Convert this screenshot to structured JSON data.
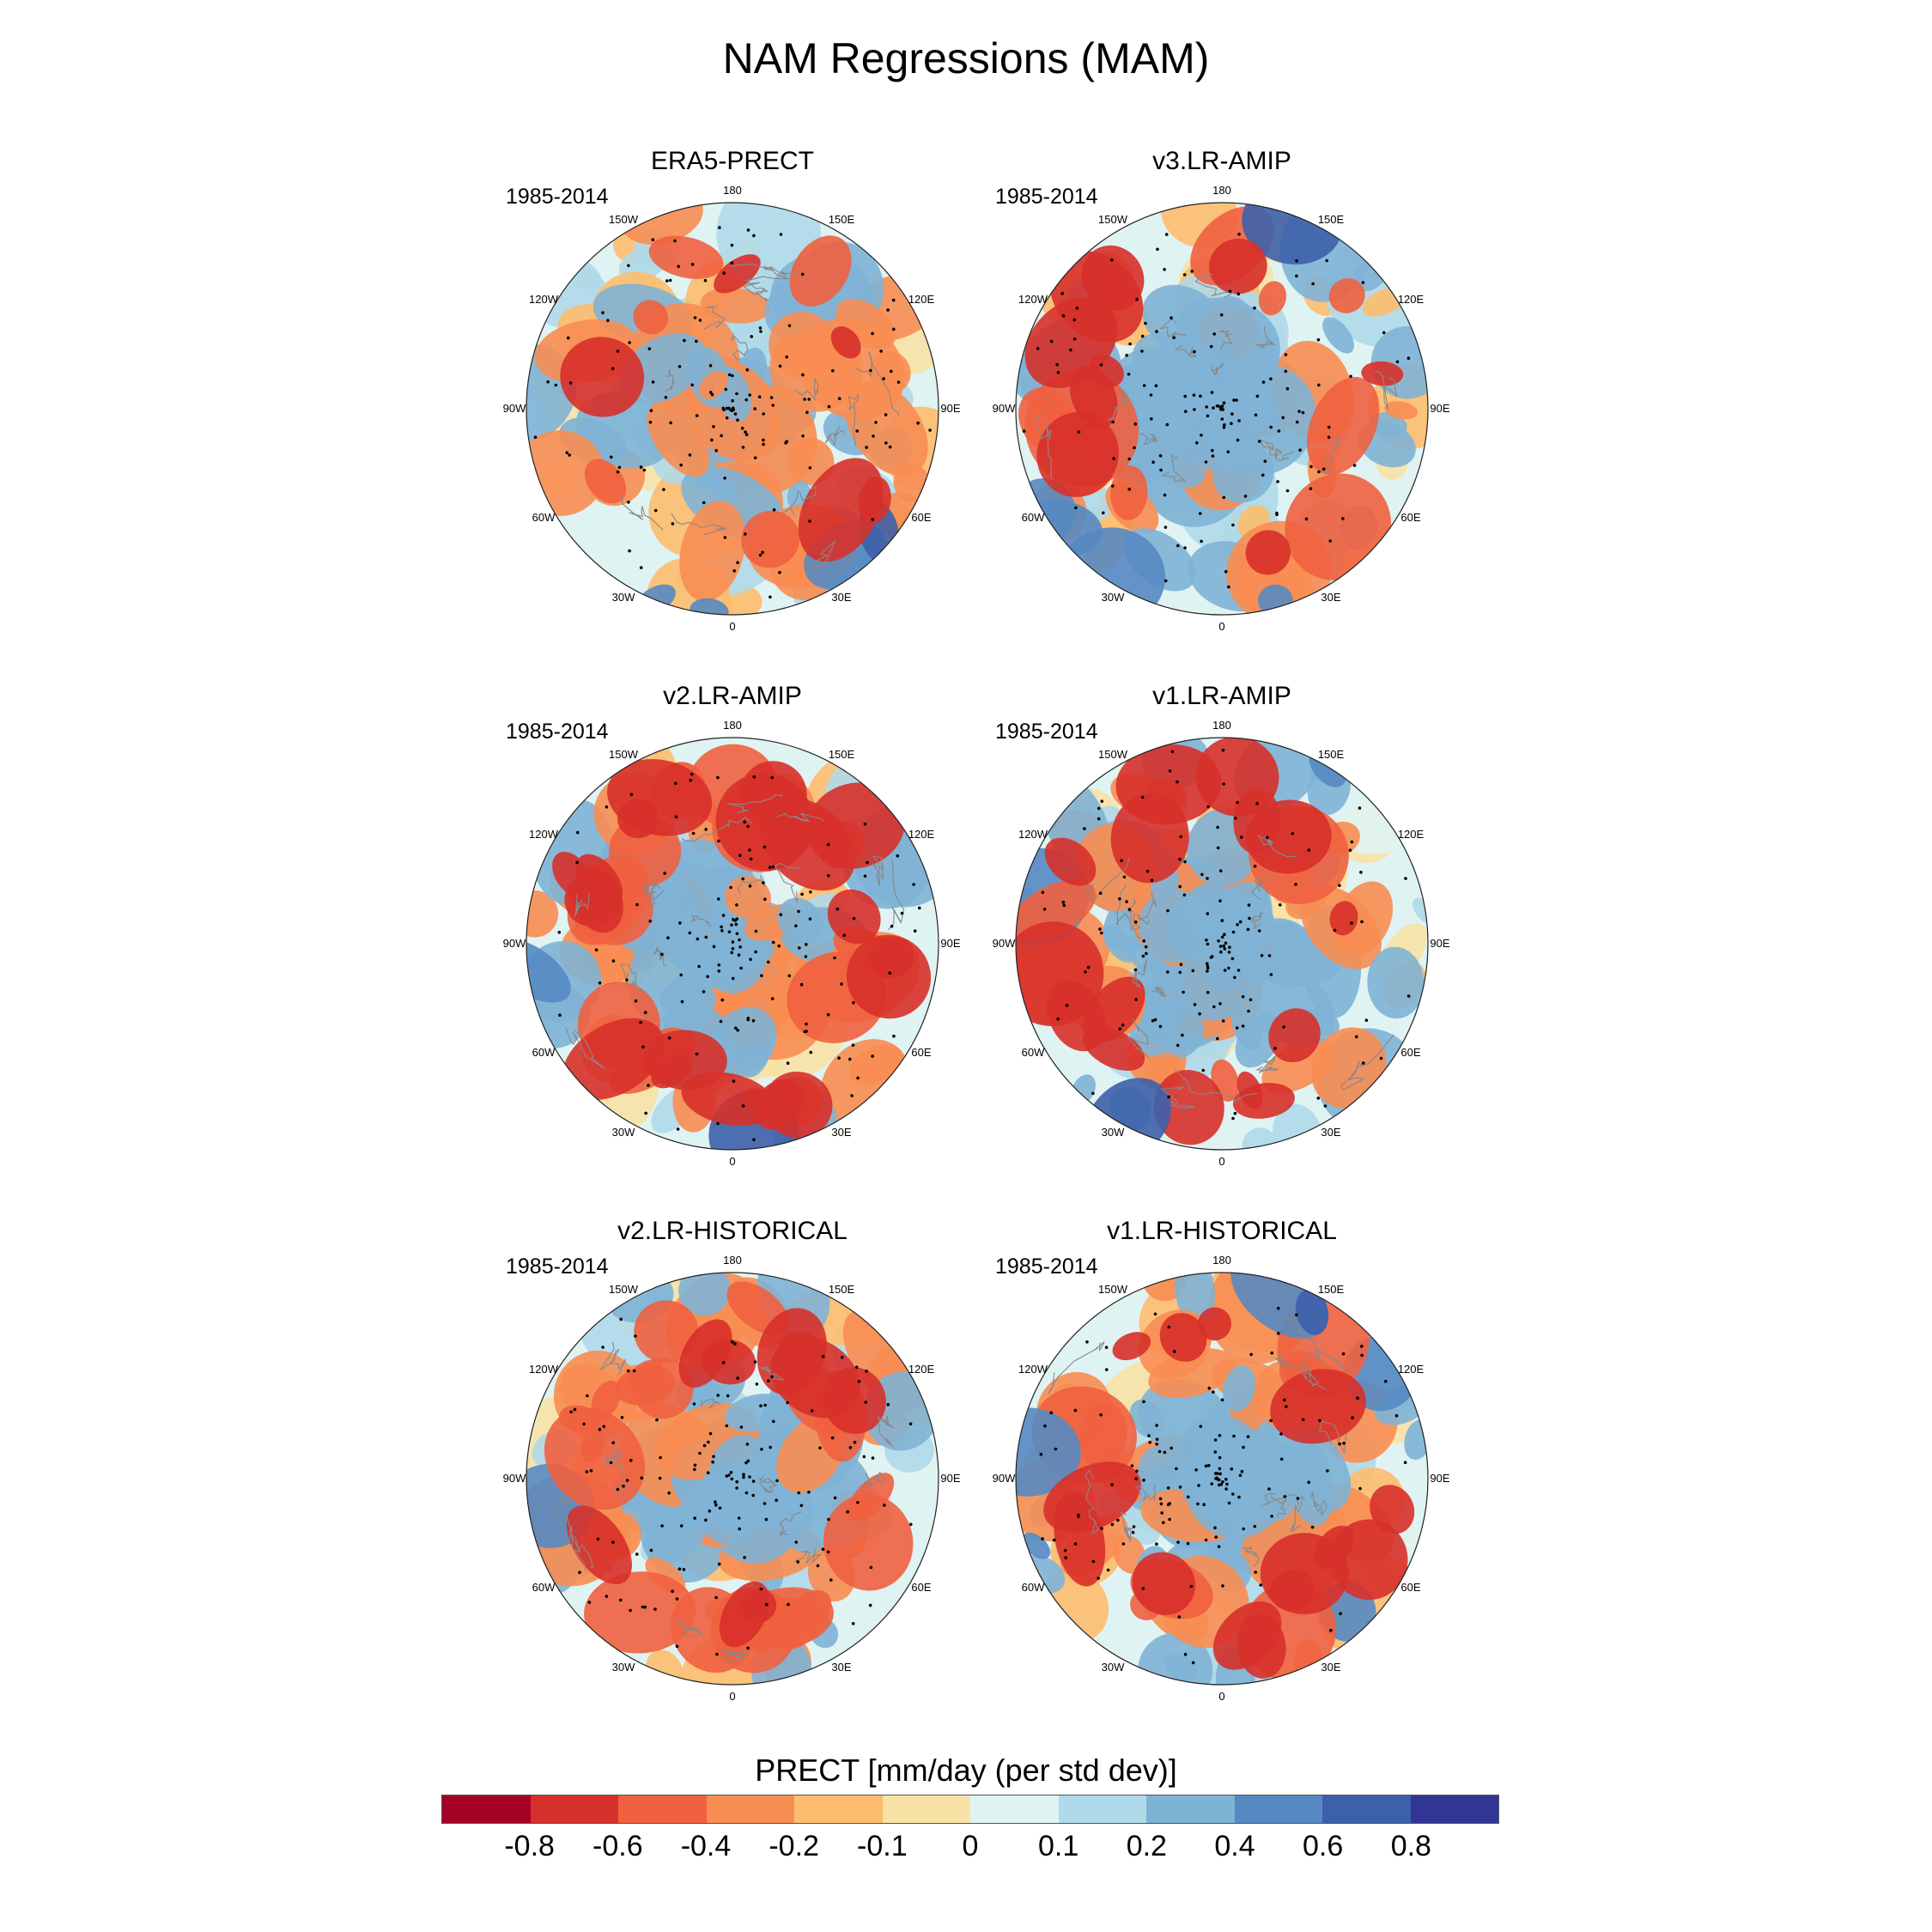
{
  "title": "NAM Regressions (MAM)",
  "panels": [
    {
      "title": "ERA5-PRECT",
      "period": "1985-2014"
    },
    {
      "title": "v3.LR-AMIP",
      "period": "1985-2014"
    },
    {
      "title": "v2.LR-AMIP",
      "period": "1985-2014"
    },
    {
      "title": "v1.LR-AMIP",
      "period": "1985-2014"
    },
    {
      "title": "v2.LR-HISTORICAL",
      "period": "1985-2014"
    },
    {
      "title": "v1.LR-HISTORICAL",
      "period": "1985-2014"
    }
  ],
  "longitude_labels": [
    "180",
    "150E",
    "120E",
    "90E",
    "60E",
    "30E",
    "0",
    "30W",
    "60W",
    "90W",
    "120W",
    "150W"
  ],
  "colorbar": {
    "title": "PRECT [mm/day (per std dev)]",
    "labels": [
      "-0.8",
      "-0.6",
      "-0.4",
      "-0.2",
      "-0.1",
      "0",
      "0.1",
      "0.2",
      "0.4",
      "0.6",
      "0.8"
    ],
    "colors": [
      "#a50026",
      "#d7302a",
      "#f0603f",
      "#f88d52",
      "#fdbd6d",
      "#f8e2a6",
      "#e0f3f3",
      "#b0d9e9",
      "#7fb3d5",
      "#5689c2",
      "#3d60ab",
      "#313695"
    ]
  }
}
